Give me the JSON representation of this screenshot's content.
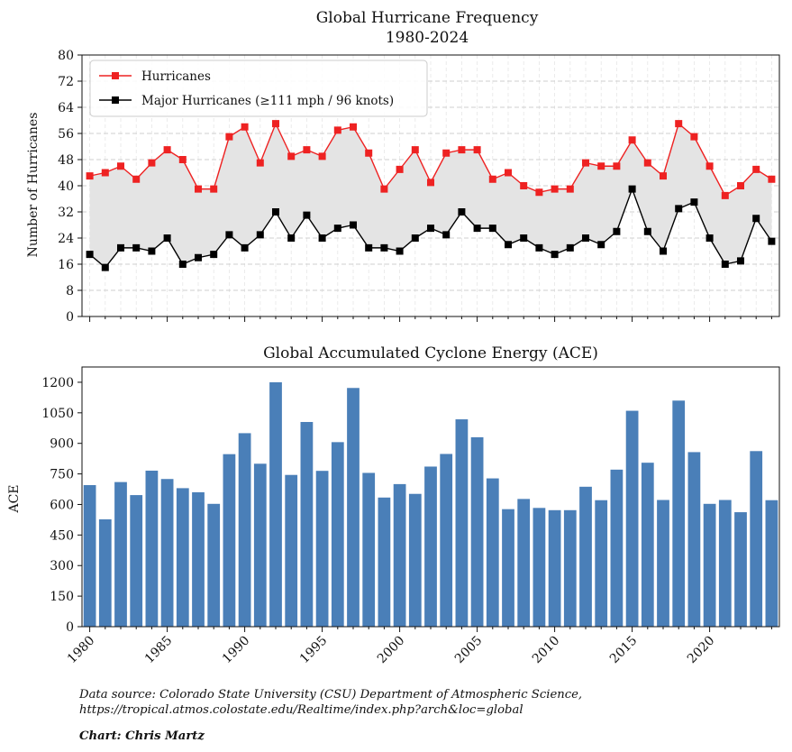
{
  "chart_data": [
    {
      "type": "line",
      "title": "Global Hurricane Frequency",
      "subtitle": "1980-2024",
      "xlabel": "",
      "ylabel": "Number of Hurricanes",
      "ylim": [
        0,
        80
      ],
      "yticks": [
        0,
        8,
        16,
        24,
        32,
        40,
        48,
        56,
        64,
        72,
        80
      ],
      "grid": true,
      "legend_position": "top-left",
      "x": [
        1980,
        1981,
        1982,
        1983,
        1984,
        1985,
        1986,
        1987,
        1988,
        1989,
        1990,
        1991,
        1992,
        1993,
        1994,
        1995,
        1996,
        1997,
        1998,
        1999,
        2000,
        2001,
        2002,
        2003,
        2004,
        2005,
        2006,
        2007,
        2008,
        2009,
        2010,
        2011,
        2012,
        2013,
        2014,
        2015,
        2016,
        2017,
        2018,
        2019,
        2020,
        2021,
        2022,
        2023,
        2024
      ],
      "series": [
        {
          "name": "Hurricanes",
          "color": "#ee2222",
          "values": [
            43,
            44,
            46,
            42,
            47,
            51,
            48,
            39,
            39,
            55,
            58,
            47,
            59,
            49,
            51,
            49,
            57,
            58,
            50,
            39,
            45,
            51,
            41,
            50,
            51,
            51,
            42,
            44,
            40,
            38,
            39,
            39,
            47,
            46,
            46,
            54,
            47,
            43,
            59,
            55,
            46,
            37,
            40,
            45,
            42
          ]
        },
        {
          "name": "Major Hurricanes (≥111 mph / 96 knots)",
          "color": "#000000",
          "values": [
            19,
            15,
            21,
            21,
            20,
            24,
            16,
            18,
            19,
            25,
            21,
            25,
            32,
            24,
            31,
            24,
            27,
            28,
            21,
            21,
            20,
            24,
            27,
            25,
            32,
            27,
            27,
            22,
            24,
            21,
            19,
            21,
            24,
            22,
            26,
            39,
            26,
            20,
            33,
            35,
            24,
            16,
            17,
            30,
            23
          ]
        }
      ],
      "fill_between": "#e4e4e4"
    },
    {
      "type": "bar",
      "title": "Global Accumulated Cyclone Energy (ACE)",
      "xlabel": "",
      "ylabel": "ACE",
      "ylim": [
        0,
        1275
      ],
      "yticks": [
        0,
        150,
        300,
        450,
        600,
        750,
        900,
        1050,
        1200
      ],
      "xticks": [
        "1980",
        "1985",
        "1990",
        "1995",
        "2000",
        "2005",
        "2010",
        "2015",
        "2020"
      ],
      "color": "#4a7fb8",
      "categories": [
        1980,
        1981,
        1982,
        1983,
        1984,
        1985,
        1986,
        1987,
        1988,
        1989,
        1990,
        1991,
        1992,
        1993,
        1994,
        1995,
        1996,
        1997,
        1998,
        1999,
        2000,
        2001,
        2002,
        2003,
        2004,
        2005,
        2006,
        2007,
        2008,
        2009,
        2010,
        2011,
        2012,
        2013,
        2014,
        2015,
        2016,
        2017,
        2018,
        2019,
        2020,
        2021,
        2022,
        2023,
        2024
      ],
      "values": [
        695,
        527,
        710,
        646,
        766,
        725,
        680,
        660,
        603,
        847,
        950,
        800,
        1200,
        745,
        1005,
        765,
        906,
        1172,
        755,
        634,
        700,
        652,
        786,
        848,
        1018,
        930,
        728,
        577,
        627,
        583,
        572,
        572,
        687,
        621,
        771,
        1060,
        805,
        622,
        1110,
        857,
        603,
        622,
        562,
        862,
        621
      ]
    }
  ],
  "footer": {
    "source_line1": "Data source: Colorado State University (CSU) Department of Atmospheric Science,",
    "source_line2": "https://tropical.atmos.colostate.edu/Realtime/index.php?arch&loc=global",
    "credit": "Chart: Chris Martz"
  }
}
